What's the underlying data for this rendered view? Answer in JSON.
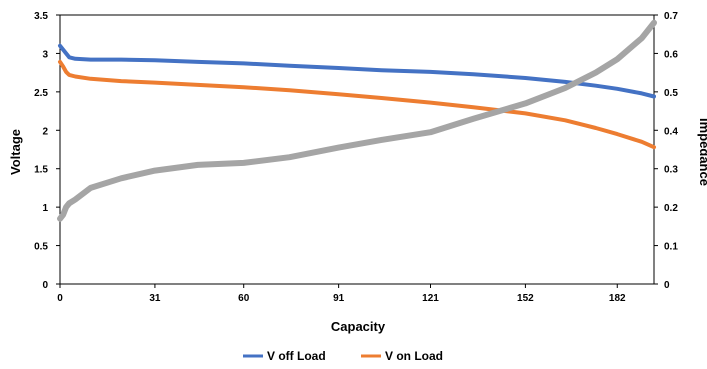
{
  "chart_data": {
    "type": "line",
    "title": "",
    "xlabel": "Capacity",
    "ylabel": "Voltage",
    "y2label": "Impedance",
    "xlim": [
      0,
      194
    ],
    "ylim": [
      0,
      3.5
    ],
    "y2lim": [
      0,
      0.7
    ],
    "x_ticks": [
      "0",
      "31",
      "60",
      "91",
      "121",
      "152",
      "182"
    ],
    "x_tick_values": [
      0,
      31,
      60,
      91,
      121,
      152,
      182
    ],
    "y_ticks": [
      "0",
      "0.5",
      "1",
      "1.5",
      "2",
      "2.5",
      "3",
      "3.5"
    ],
    "y_tick_values": [
      0,
      0.5,
      1,
      1.5,
      2,
      2.5,
      3,
      3.5
    ],
    "y2_ticks": [
      "0",
      "0.1",
      "0.2",
      "0.3",
      "0.4",
      "0.5",
      "0.6",
      "0.7"
    ],
    "y2_tick_values": [
      0,
      0.1,
      0.2,
      0.3,
      0.4,
      0.5,
      0.6,
      0.7
    ],
    "grid": false,
    "legend_position": "bottom",
    "series": [
      {
        "name": "V off Load",
        "axis": "left",
        "color": "#4472C4",
        "x": [
          0,
          1,
          2,
          3,
          5,
          10,
          20,
          31,
          45,
          60,
          75,
          91,
          105,
          121,
          135,
          152,
          165,
          175,
          182,
          190,
          194
        ],
        "y": [
          3.1,
          3.05,
          3.0,
          2.95,
          2.93,
          2.92,
          2.92,
          2.91,
          2.89,
          2.87,
          2.84,
          2.81,
          2.78,
          2.76,
          2.73,
          2.68,
          2.63,
          2.58,
          2.54,
          2.48,
          2.44
        ]
      },
      {
        "name": "V on Load",
        "axis": "left",
        "color": "#ED7D31",
        "x": [
          0,
          1,
          2,
          3,
          5,
          10,
          20,
          31,
          45,
          60,
          75,
          91,
          105,
          121,
          135,
          152,
          165,
          175,
          182,
          190,
          194
        ],
        "y": [
          2.89,
          2.83,
          2.76,
          2.72,
          2.7,
          2.67,
          2.64,
          2.62,
          2.59,
          2.56,
          2.52,
          2.47,
          2.42,
          2.36,
          2.3,
          2.22,
          2.13,
          2.03,
          1.95,
          1.85,
          1.78
        ]
      },
      {
        "name": "",
        "axis": "right",
        "color": "#A5A5A5",
        "x": [
          0,
          1,
          2,
          3,
          5,
          10,
          20,
          31,
          45,
          60,
          75,
          91,
          105,
          121,
          135,
          152,
          165,
          175,
          182,
          190,
          194
        ],
        "y": [
          0.17,
          0.18,
          0.2,
          0.21,
          0.22,
          0.25,
          0.275,
          0.295,
          0.31,
          0.315,
          0.33,
          0.355,
          0.375,
          0.395,
          0.43,
          0.47,
          0.51,
          0.55,
          0.585,
          0.64,
          0.68
        ]
      }
    ]
  }
}
